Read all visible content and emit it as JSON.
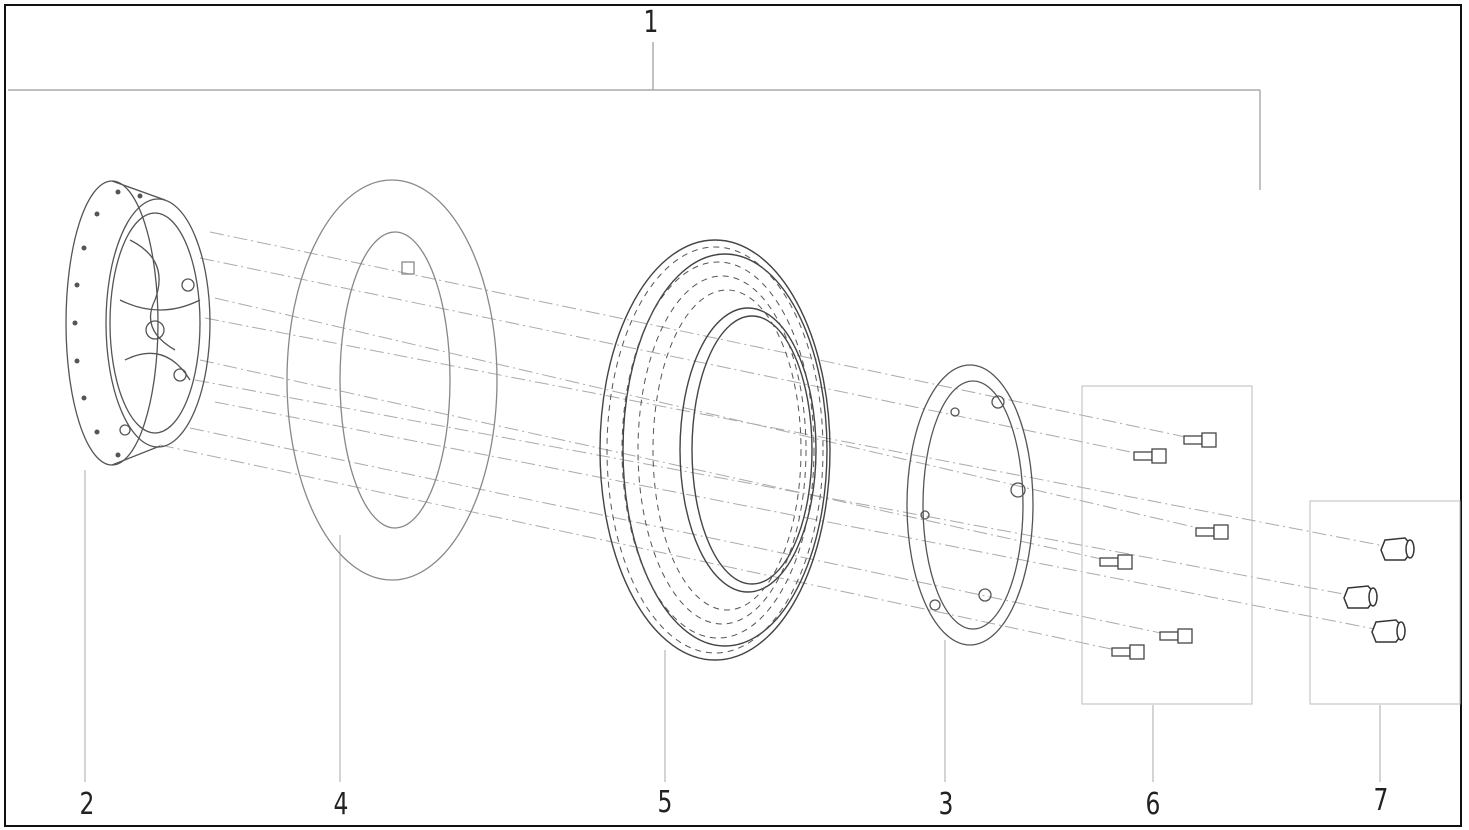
{
  "callouts": {
    "assembly": "1",
    "hub": "2",
    "rim_ring": "3",
    "inner_tube": "4",
    "tire": "5",
    "bolts": "6",
    "nuts": "7"
  },
  "colors": {
    "line": "#555555",
    "light": "#9a9a9a",
    "frame": "#111111"
  }
}
